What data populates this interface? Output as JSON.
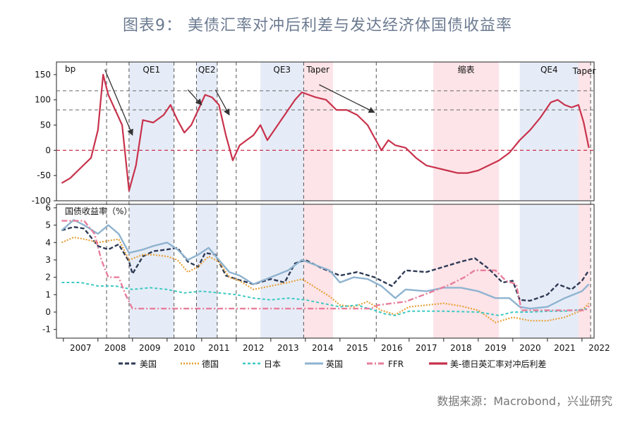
{
  "title": "图表9： 美债汇率对冲后利差与发达经济体国债收益率",
  "source": "数据来源：Macrobond，兴业研究",
  "colors": {
    "us": "#2e3a55",
    "de": "#e8a13a",
    "jp": "#3ec9c3",
    "uk": "#8fb3d0",
    "ffr": "#e87e9c",
    "spread": "#c8324c",
    "qe": "#e6ecf7",
    "taper": "#fde4e8",
    "title": "#6b7a90"
  },
  "chart_data": [
    {
      "type": "line",
      "ylabel": "bp",
      "ylim": [
        -100,
        175
      ],
      "yticks": [
        "150",
        "100",
        "50",
        "0",
        "-50",
        "-100"
      ],
      "shaded_periods": [
        {
          "label": "QE1",
          "kind": "qe",
          "from": 2008.9,
          "to": 2010.2
        },
        {
          "label": "QE2",
          "kind": "qe",
          "from": 2010.85,
          "to": 2011.45
        },
        {
          "label": "QE3",
          "kind": "qe",
          "from": 2012.7,
          "to": 2013.95
        },
        {
          "label": "Taper",
          "kind": "taper",
          "from": 2013.95,
          "to": 2014.8
        },
        {
          "label": "缩表",
          "kind": "taper",
          "from": 2017.7,
          "to": 2019.6
        },
        {
          "label": "QE4",
          "kind": "qe",
          "from": 2020.2,
          "to": 2021.9
        },
        {
          "label": "Taper",
          "kind": "taper",
          "from": 2021.9,
          "to": 2022.25
        }
      ],
      "series": [
        {
          "name": "美-德日英汇率对冲后利差",
          "x": [
            2006.95,
            2007.2,
            2007.5,
            2007.8,
            2008.0,
            2008.15,
            2008.3,
            2008.5,
            2008.7,
            2008.9,
            2009.1,
            2009.3,
            2009.6,
            2009.9,
            2010.1,
            2010.3,
            2010.5,
            2010.7,
            2010.9,
            2011.1,
            2011.3,
            2011.5,
            2011.7,
            2011.9,
            2012.1,
            2012.3,
            2012.5,
            2012.7,
            2012.9,
            2013.1,
            2013.3,
            2013.5,
            2013.7,
            2013.9,
            2014.1,
            2014.3,
            2014.6,
            2014.9,
            2015.2,
            2015.5,
            2015.8,
            2016.0,
            2016.2,
            2016.4,
            2016.6,
            2016.9,
            2017.2,
            2017.5,
            2017.8,
            2018.1,
            2018.4,
            2018.7,
            2019.0,
            2019.3,
            2019.6,
            2019.9,
            2020.2,
            2020.5,
            2020.8,
            2021.1,
            2021.3,
            2021.5,
            2021.7,
            2021.9,
            2022.05,
            2022.2
          ],
          "values": [
            -65,
            -55,
            -35,
            -15,
            40,
            150,
            110,
            80,
            50,
            -80,
            -30,
            60,
            55,
            70,
            90,
            60,
            35,
            50,
            80,
            110,
            105,
            90,
            30,
            -20,
            10,
            20,
            30,
            50,
            20,
            40,
            60,
            80,
            100,
            115,
            110,
            105,
            100,
            80,
            80,
            70,
            50,
            25,
            0,
            20,
            10,
            5,
            -15,
            -30,
            -35,
            -40,
            -45,
            -45,
            -40,
            -30,
            -20,
            -5,
            20,
            40,
            65,
            95,
            100,
            90,
            85,
            90,
            55,
            5
          ]
        }
      ]
    },
    {
      "type": "line",
      "ylabel": "国债收益率（%）",
      "ylim": [
        -1.5,
        6.2
      ],
      "yticks": [
        "6",
        "5",
        "4",
        "3",
        "2",
        "1",
        "0",
        "-1"
      ],
      "xticks": [
        "2007",
        "2008",
        "2009",
        "2010",
        "2011",
        "2012",
        "2013",
        "2014",
        "2015",
        "2016",
        "2017",
        "2018",
        "2019",
        "2020",
        "2021",
        "2022"
      ],
      "series": [
        {
          "name": "美国",
          "x": [
            2006.95,
            2007.3,
            2007.6,
            2008.0,
            2008.3,
            2008.6,
            2008.9,
            2009.0,
            2009.3,
            2009.6,
            2010.0,
            2010.3,
            2010.6,
            2010.9,
            2011.1,
            2011.4,
            2011.7,
            2012.0,
            2012.5,
            2013.0,
            2013.4,
            2013.7,
            2014.0,
            2014.5,
            2015.0,
            2015.5,
            2016.0,
            2016.5,
            2016.9,
            2017.5,
            2018.0,
            2018.5,
            2018.9,
            2019.3,
            2019.7,
            2020.0,
            2020.2,
            2020.5,
            2021.0,
            2021.3,
            2021.7,
            2022.0,
            2022.2
          ],
          "values": [
            4.7,
            4.9,
            4.8,
            3.8,
            3.6,
            3.9,
            2.9,
            2.2,
            3.2,
            3.5,
            3.6,
            3.7,
            2.9,
            2.6,
            3.4,
            3.3,
            2.1,
            1.9,
            1.6,
            1.9,
            1.7,
            2.8,
            3.0,
            2.5,
            2.1,
            2.3,
            2.0,
            1.5,
            2.4,
            2.3,
            2.6,
            2.9,
            3.1,
            2.5,
            1.7,
            1.8,
            0.7,
            0.65,
            1.0,
            1.6,
            1.3,
            1.8,
            2.4
          ]
        },
        {
          "name": "德国",
          "x": [
            2006.95,
            2007.3,
            2007.6,
            2008.0,
            2008.3,
            2008.6,
            2008.9,
            2009.3,
            2009.6,
            2010.0,
            2010.3,
            2010.6,
            2010.9,
            2011.2,
            2011.5,
            2011.8,
            2012.1,
            2012.5,
            2013.0,
            2013.5,
            2013.9,
            2014.3,
            2014.7,
            2015.0,
            2015.4,
            2015.8,
            2016.2,
            2016.6,
            2017.0,
            2017.5,
            2018.0,
            2018.5,
            2019.0,
            2019.5,
            2020.0,
            2020.5,
            2021.0,
            2021.5,
            2022.0,
            2022.2
          ],
          "values": [
            4.0,
            4.3,
            4.2,
            4.0,
            4.1,
            4.2,
            3.0,
            3.3,
            3.3,
            3.2,
            3.0,
            2.3,
            2.6,
            3.2,
            2.9,
            2.0,
            1.8,
            1.3,
            1.5,
            1.7,
            1.9,
            1.4,
            0.9,
            0.4,
            0.3,
            0.6,
            0.1,
            -0.15,
            0.3,
            0.4,
            0.5,
            0.35,
            0.1,
            -0.6,
            -0.3,
            -0.5,
            -0.5,
            -0.3,
            0.1,
            0.5
          ]
        },
        {
          "name": "日本",
          "x": [
            2006.95,
            2007.5,
            2008.0,
            2008.5,
            2009.0,
            2009.5,
            2010.0,
            2010.5,
            2011.0,
            2011.5,
            2012.0,
            2012.5,
            2013.0,
            2013.5,
            2014.0,
            2014.5,
            2015.0,
            2015.5,
            2016.0,
            2016.3,
            2016.6,
            2017.0,
            2018.0,
            2019.0,
            2019.6,
            2020.0,
            2020.5,
            2021.0,
            2021.5,
            2022.0,
            2022.2
          ],
          "values": [
            1.7,
            1.7,
            1.5,
            1.5,
            1.3,
            1.4,
            1.3,
            1.1,
            1.2,
            1.1,
            1.0,
            0.8,
            0.7,
            0.8,
            0.7,
            0.5,
            0.3,
            0.4,
            0.1,
            -0.1,
            -0.2,
            0.05,
            0.05,
            0.0,
            -0.2,
            0.0,
            0.0,
            0.05,
            0.05,
            0.15,
            0.2
          ]
        },
        {
          "name": "英国",
          "x": [
            2006.95,
            2007.3,
            2007.6,
            2008.0,
            2008.3,
            2008.6,
            2008.9,
            2009.3,
            2009.6,
            2010.0,
            2010.3,
            2010.6,
            2010.9,
            2011.2,
            2011.5,
            2011.8,
            2012.1,
            2012.5,
            2013.0,
            2013.5,
            2013.9,
            2014.3,
            2014.7,
            2015.0,
            2015.4,
            2015.8,
            2016.2,
            2016.6,
            2016.9,
            2017.5,
            2018.0,
            2018.5,
            2019.0,
            2019.5,
            2019.9,
            2020.2,
            2020.5,
            2021.0,
            2021.5,
            2022.0,
            2022.2
          ],
          "values": [
            4.7,
            5.3,
            5.0,
            4.5,
            5.0,
            4.5,
            3.4,
            3.6,
            3.8,
            4.0,
            3.6,
            3.0,
            3.3,
            3.7,
            3.0,
            2.3,
            2.1,
            1.6,
            2.0,
            2.4,
            3.0,
            2.7,
            2.4,
            1.7,
            2.0,
            1.9,
            1.5,
            0.8,
            1.3,
            1.2,
            1.4,
            1.4,
            1.2,
            0.8,
            0.8,
            0.3,
            0.2,
            0.3,
            0.8,
            1.2,
            1.6
          ]
        },
        {
          "name": "FFR",
          "x": [
            2006.95,
            2007.6,
            2007.9,
            2008.1,
            2008.3,
            2008.6,
            2008.8,
            2009.0,
            2015.9,
            2016.1,
            2016.9,
            2017.3,
            2017.7,
            2018.2,
            2018.6,
            2018.9,
            2019.5,
            2019.8,
            2020.1,
            2020.25,
            2022.1,
            2022.2
          ],
          "values": [
            5.25,
            5.25,
            4.5,
            3.0,
            2.0,
            2.0,
            1.0,
            0.2,
            0.2,
            0.4,
            0.6,
            0.9,
            1.2,
            1.6,
            2.0,
            2.4,
            2.4,
            1.8,
            1.6,
            0.1,
            0.1,
            0.35
          ]
        }
      ]
    }
  ]
}
